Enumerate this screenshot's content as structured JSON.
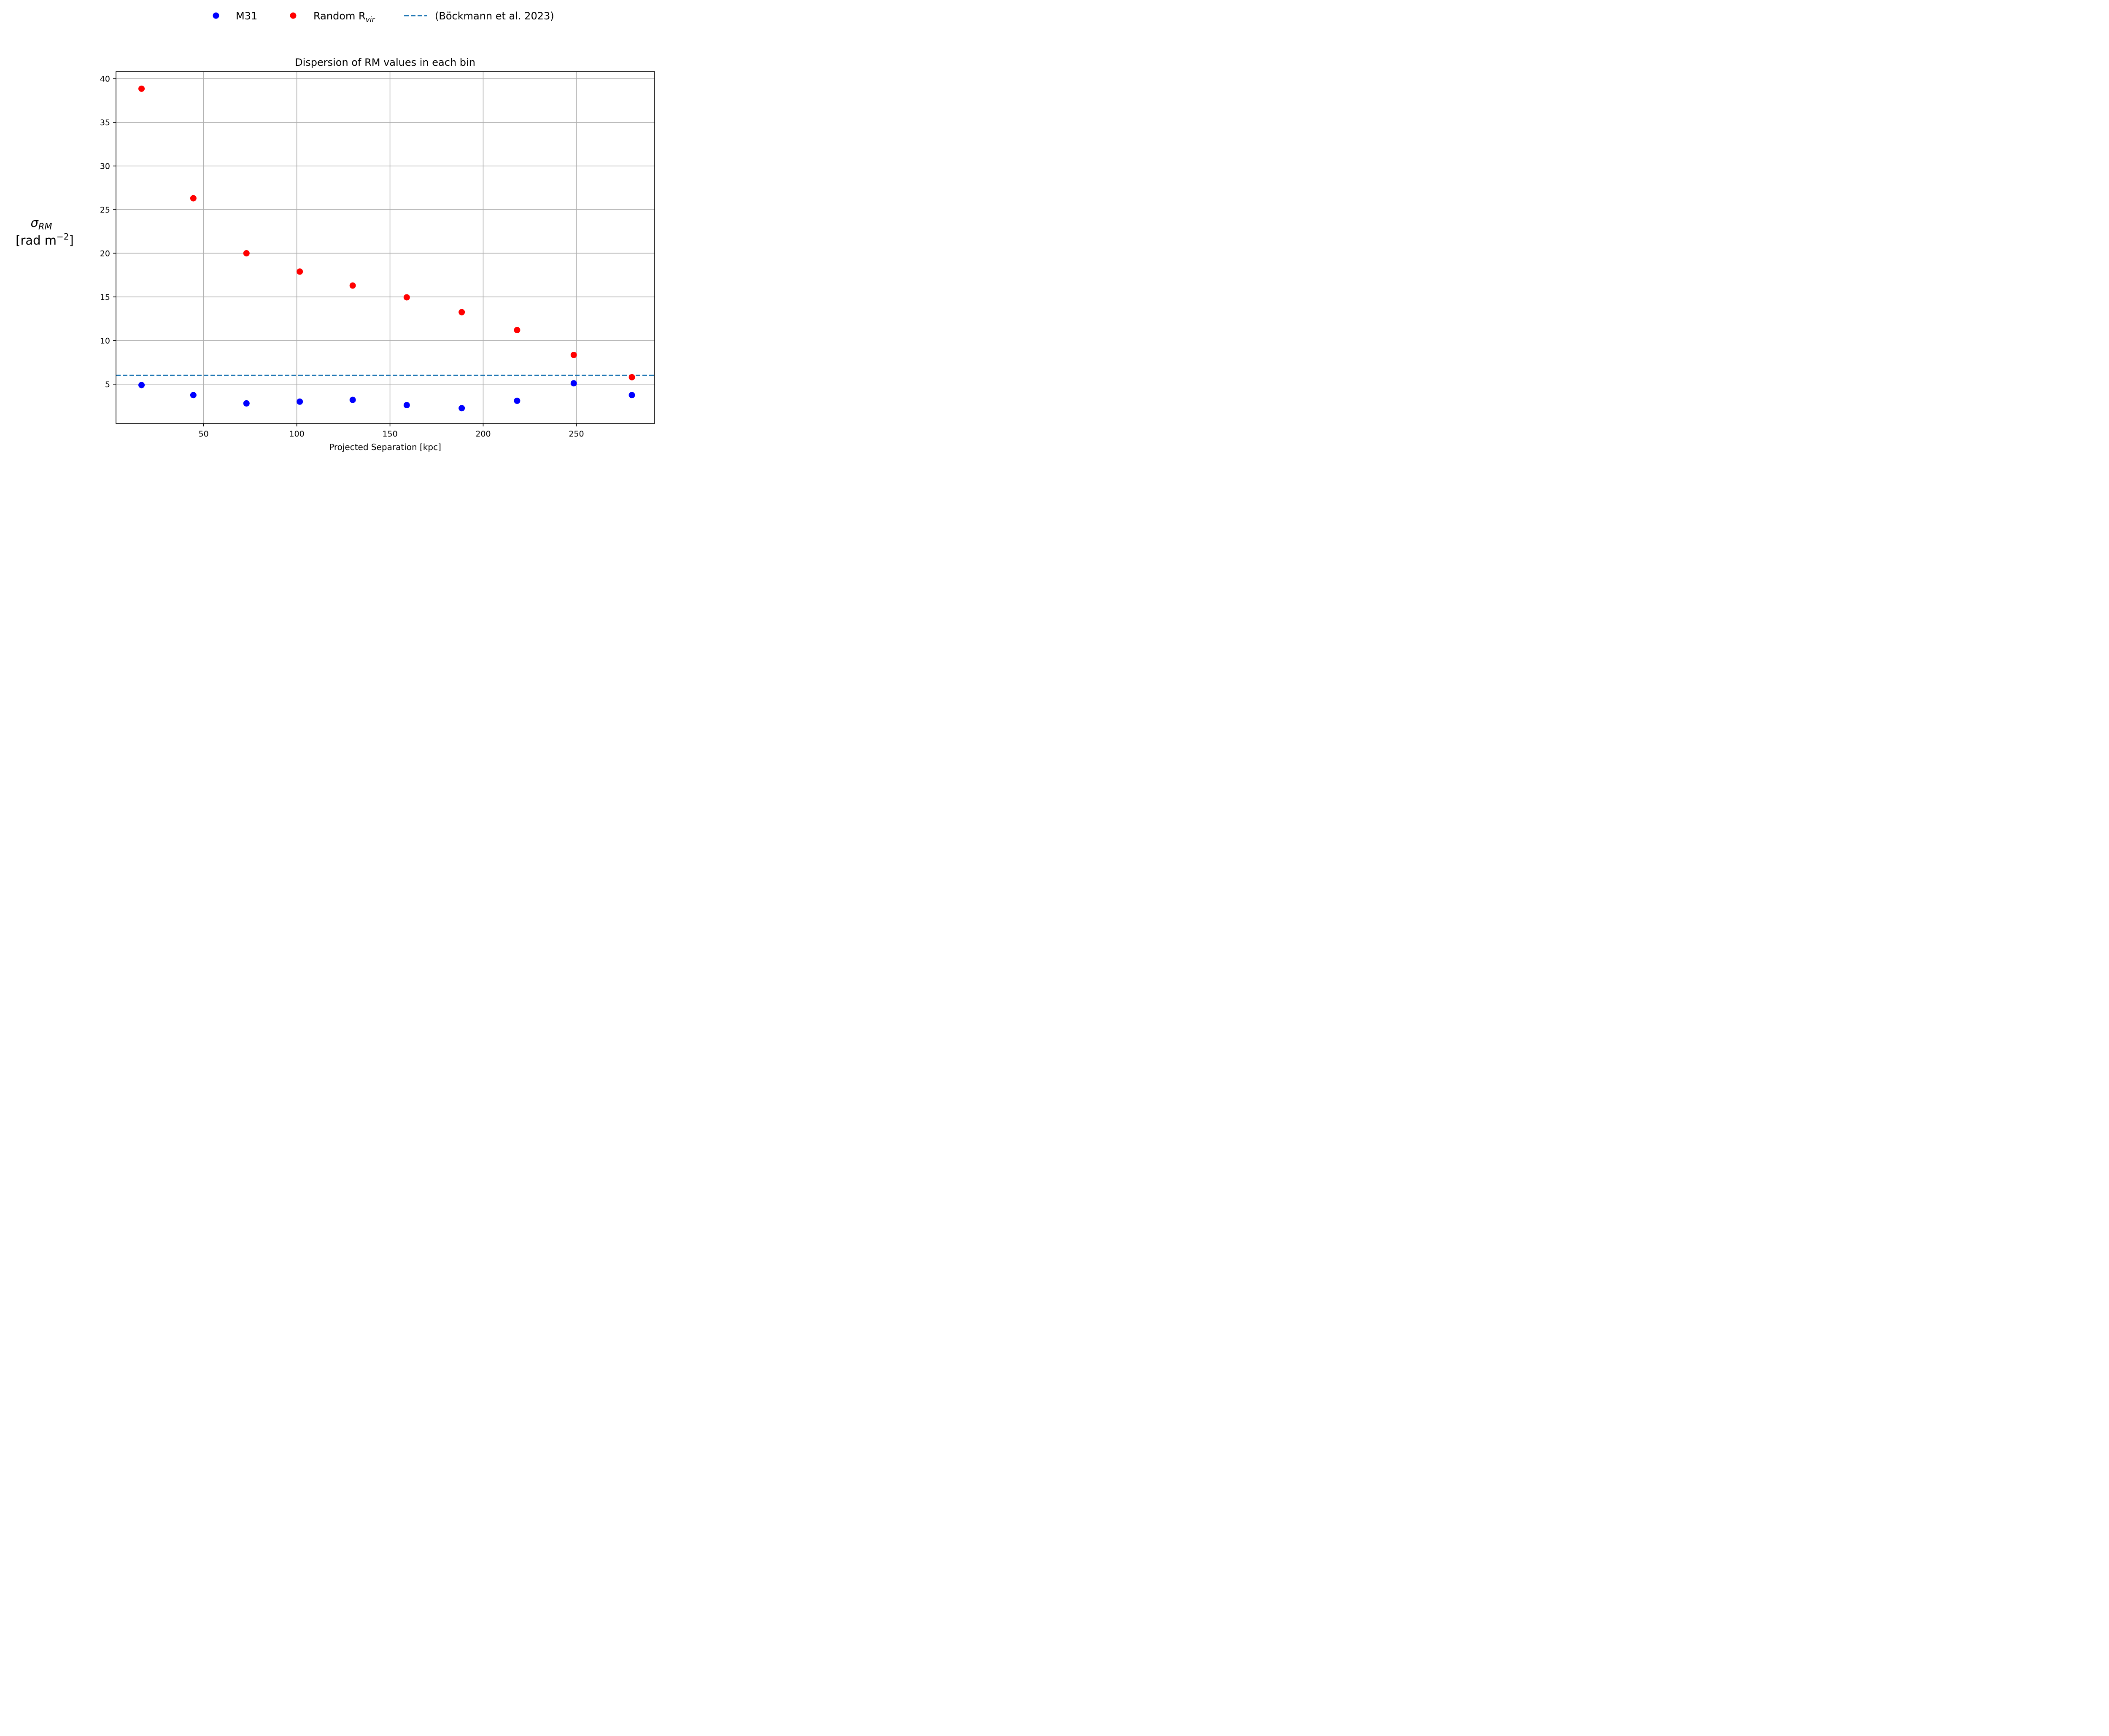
{
  "chart_data": {
    "type": "scatter",
    "title": "Dispersion of RM values in each bin",
    "xlabel": "Projected Separation [kpc]",
    "ylabel_symbol": "σ",
    "ylabel_subscript": "RM",
    "ylabel_units": "[rad m",
    "ylabel_units_exponent": "−2",
    "ylabel_units_close": "]",
    "xlim": [
      3,
      292
    ],
    "ylim": [
      0.5,
      40.8
    ],
    "xticks": [
      50,
      100,
      150,
      200,
      250
    ],
    "yticks": [
      5,
      10,
      15,
      20,
      25,
      30,
      35,
      40
    ],
    "grid": true,
    "legend_position": "top-center",
    "series": [
      {
        "name": "M31",
        "kind": "points",
        "color": "#0000ff",
        "x": [
          16.7,
          44.5,
          73.0,
          101.6,
          130.0,
          159.0,
          188.5,
          218.2,
          248.6,
          279.8
        ],
        "y": [
          4.9,
          3.75,
          2.8,
          3.0,
          3.2,
          2.6,
          2.25,
          3.1,
          5.1,
          3.75
        ]
      },
      {
        "name": "Random R",
        "name_subscript": "vir",
        "kind": "points",
        "color": "#ff0000",
        "x": [
          16.7,
          44.5,
          73.0,
          101.6,
          130.0,
          159.0,
          188.5,
          218.2,
          248.6,
          279.8
        ],
        "y": [
          38.85,
          26.3,
          20.0,
          17.9,
          16.3,
          14.95,
          13.25,
          11.2,
          8.35,
          5.8
        ]
      },
      {
        "name": "(Böckmann et al. 2023)",
        "kind": "hline",
        "color": "#1f77b4",
        "y": 6.0
      }
    ]
  }
}
